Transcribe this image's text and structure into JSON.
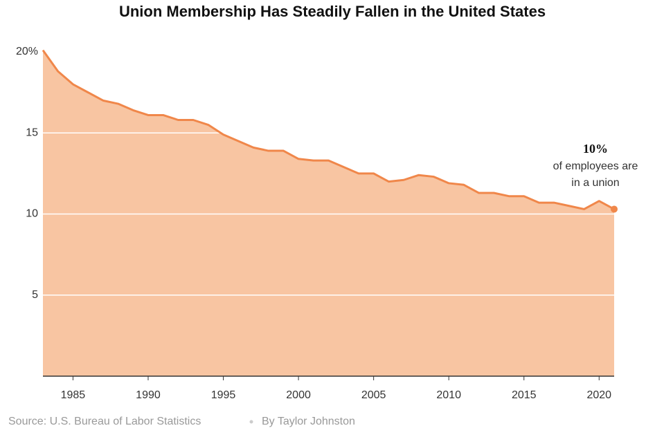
{
  "chart_data": {
    "type": "area",
    "title": "Union Membership Has Steadily Fallen in the United States",
    "x": [
      1983,
      1984,
      1985,
      1986,
      1987,
      1988,
      1989,
      1990,
      1991,
      1992,
      1993,
      1994,
      1995,
      1996,
      1997,
      1998,
      1999,
      2000,
      2001,
      2002,
      2003,
      2004,
      2005,
      2006,
      2007,
      2008,
      2009,
      2010,
      2011,
      2012,
      2013,
      2014,
      2015,
      2016,
      2017,
      2018,
      2019,
      2020,
      2021
    ],
    "values": [
      20.1,
      18.8,
      18.0,
      17.5,
      17.0,
      16.8,
      16.4,
      16.1,
      16.1,
      15.8,
      15.8,
      15.5,
      14.9,
      14.5,
      14.1,
      13.9,
      13.9,
      13.4,
      13.3,
      13.3,
      12.9,
      12.5,
      12.5,
      12.0,
      12.1,
      12.4,
      12.3,
      11.9,
      11.8,
      11.3,
      11.3,
      11.1,
      11.1,
      10.7,
      10.7,
      10.5,
      10.3,
      10.8,
      10.3
    ],
    "color": "#f0874a",
    "fill": "#f8c5a2",
    "xlim": [
      1983,
      2021
    ],
    "xticks": [
      1985,
      1990,
      1995,
      2000,
      2005,
      2010,
      2015,
      2020
    ],
    "ylim": [
      0,
      20
    ],
    "yticks": [
      {
        "value": 20,
        "label": "20%"
      },
      15,
      10,
      5
    ],
    "grid": true,
    "annotation": [
      "10%",
      "of employees are",
      "in a union"
    ],
    "source": "Source: U.S. Bureau of Labor Statistics",
    "byline": "By Taylor Johnston"
  }
}
